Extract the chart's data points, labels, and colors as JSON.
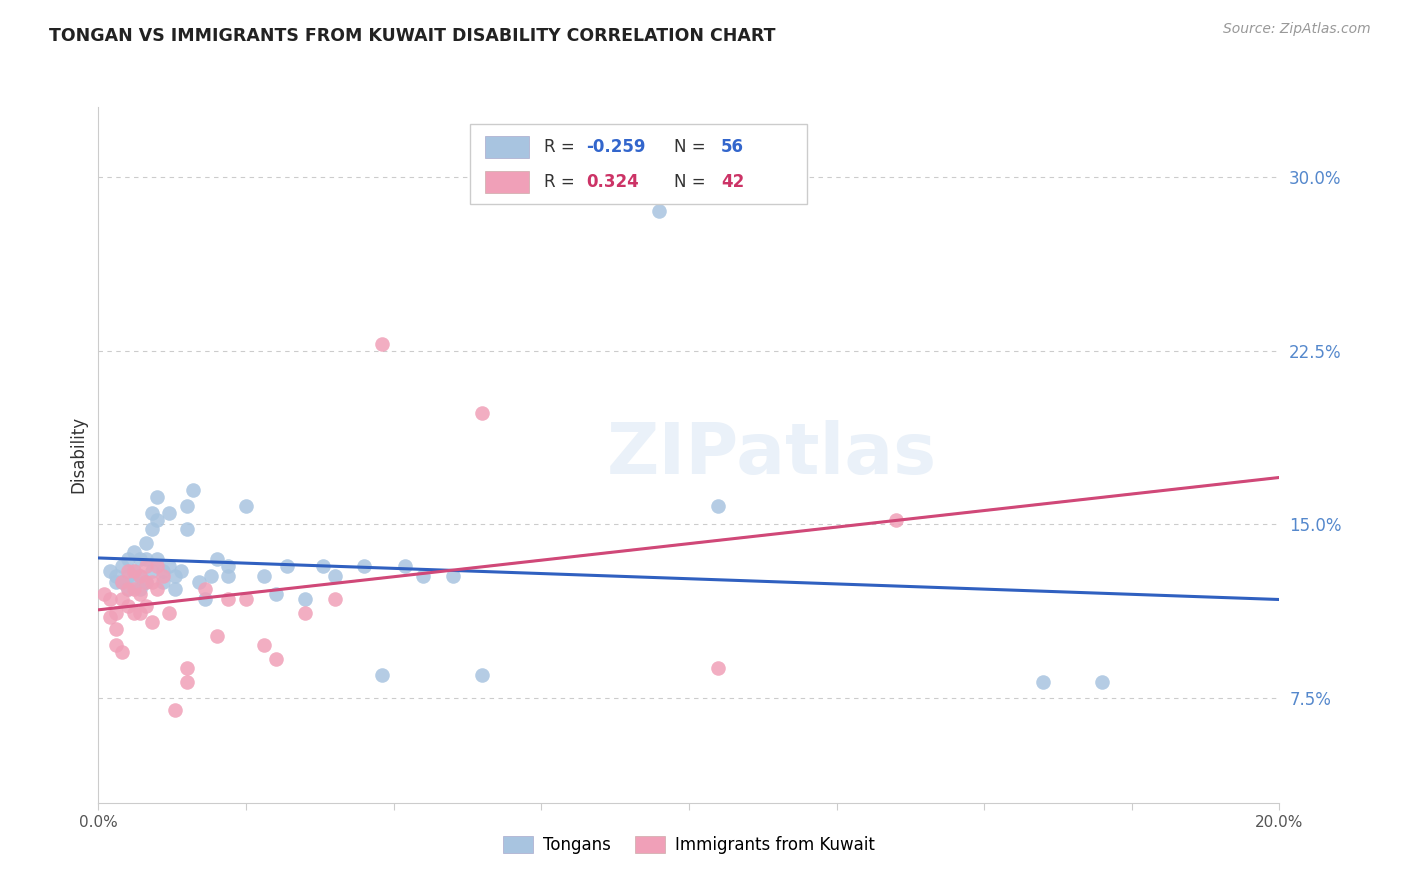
{
  "title": "TONGAN VS IMMIGRANTS FROM KUWAIT DISABILITY CORRELATION CHART",
  "source": "Source: ZipAtlas.com",
  "ylabel": "Disability",
  "ytick_labels": [
    "7.5%",
    "15.0%",
    "22.5%",
    "30.0%"
  ],
  "ytick_values": [
    0.075,
    0.15,
    0.225,
    0.3
  ],
  "xlim": [
    0.0,
    0.2
  ],
  "ylim": [
    0.03,
    0.33
  ],
  "legend_blue_r": "-0.259",
  "legend_blue_n": "56",
  "legend_pink_r": "0.324",
  "legend_pink_n": "42",
  "blue_color": "#a8c4e0",
  "pink_color": "#f0a0b8",
  "line_blue": "#3060c0",
  "line_pink": "#d04878",
  "watermark": "ZIPatlas",
  "blue_points_x": [
    0.002,
    0.003,
    0.003,
    0.004,
    0.004,
    0.005,
    0.005,
    0.005,
    0.006,
    0.006,
    0.006,
    0.007,
    0.007,
    0.007,
    0.008,
    0.008,
    0.008,
    0.009,
    0.009,
    0.009,
    0.01,
    0.01,
    0.01,
    0.011,
    0.011,
    0.012,
    0.012,
    0.013,
    0.013,
    0.014,
    0.015,
    0.015,
    0.016,
    0.017,
    0.018,
    0.019,
    0.02,
    0.022,
    0.022,
    0.025,
    0.028,
    0.03,
    0.032,
    0.035,
    0.038,
    0.04,
    0.045,
    0.048,
    0.052,
    0.055,
    0.06,
    0.065,
    0.095,
    0.105,
    0.16,
    0.17
  ],
  "blue_points_y": [
    0.13,
    0.128,
    0.125,
    0.132,
    0.125,
    0.135,
    0.128,
    0.122,
    0.138,
    0.13,
    0.125,
    0.135,
    0.128,
    0.122,
    0.142,
    0.135,
    0.125,
    0.155,
    0.148,
    0.13,
    0.162,
    0.152,
    0.135,
    0.13,
    0.125,
    0.155,
    0.132,
    0.128,
    0.122,
    0.13,
    0.158,
    0.148,
    0.165,
    0.125,
    0.118,
    0.128,
    0.135,
    0.128,
    0.132,
    0.158,
    0.128,
    0.12,
    0.132,
    0.118,
    0.132,
    0.128,
    0.132,
    0.085,
    0.132,
    0.128,
    0.128,
    0.085,
    0.285,
    0.158,
    0.082,
    0.082
  ],
  "pink_points_x": [
    0.001,
    0.002,
    0.002,
    0.003,
    0.003,
    0.003,
    0.004,
    0.004,
    0.004,
    0.005,
    0.005,
    0.005,
    0.006,
    0.006,
    0.006,
    0.007,
    0.007,
    0.007,
    0.008,
    0.008,
    0.008,
    0.009,
    0.009,
    0.01,
    0.01,
    0.011,
    0.012,
    0.013,
    0.015,
    0.015,
    0.018,
    0.02,
    0.022,
    0.025,
    0.028,
    0.03,
    0.035,
    0.04,
    0.048,
    0.065,
    0.105,
    0.135
  ],
  "pink_points_y": [
    0.12,
    0.118,
    0.11,
    0.112,
    0.105,
    0.098,
    0.125,
    0.118,
    0.095,
    0.13,
    0.122,
    0.115,
    0.13,
    0.122,
    0.112,
    0.128,
    0.12,
    0.112,
    0.132,
    0.125,
    0.115,
    0.125,
    0.108,
    0.132,
    0.122,
    0.128,
    0.112,
    0.07,
    0.088,
    0.082,
    0.122,
    0.102,
    0.118,
    0.118,
    0.098,
    0.092,
    0.112,
    0.118,
    0.228,
    0.198,
    0.088,
    0.152
  ]
}
